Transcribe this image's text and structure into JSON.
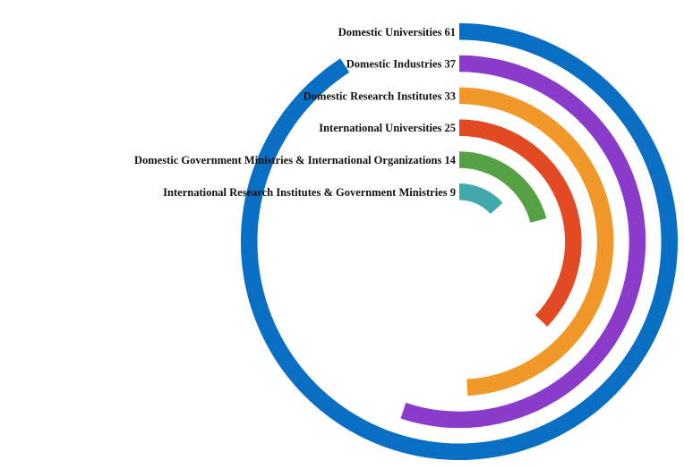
{
  "chart_data": {
    "type": "radial_bar",
    "max_value": 61,
    "series": [
      {
        "name": "Domestic Universities",
        "value": 61,
        "color": "#0A6EC3"
      },
      {
        "name": "Domestic Industries",
        "value": 37,
        "color": "#8A3BC9"
      },
      {
        "name": "Domestic Research Institutes",
        "value": 33,
        "color": "#F0992A"
      },
      {
        "name": "International Universities",
        "value": 25,
        "color": "#E24A23"
      },
      {
        "name": "Domestic Government Ministries & International Organizations",
        "value": 14,
        "color": "#56A046"
      },
      {
        "name": "International Research Institutes & Government Ministries",
        "value": 9,
        "color": "#42A8AE"
      }
    ]
  }
}
